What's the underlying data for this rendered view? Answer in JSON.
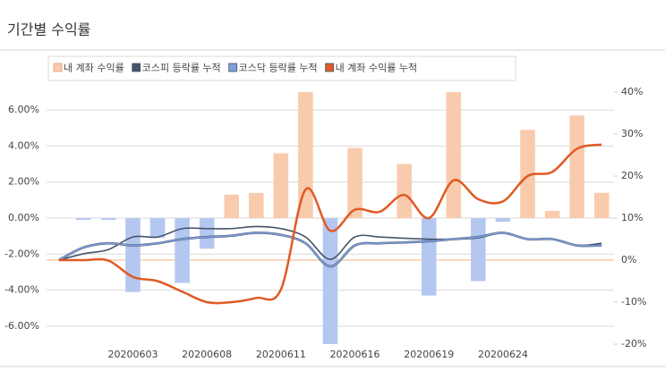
{
  "chart_data": {
    "type": "combo",
    "title": "기간별 수익률",
    "categories": [
      null,
      null,
      null,
      "20200603",
      null,
      null,
      "20200608",
      null,
      null,
      "20200611",
      null,
      null,
      "20200616",
      null,
      null,
      "20200619",
      null,
      null,
      "20200624",
      null,
      null,
      null,
      null
    ],
    "series": [
      {
        "name": "내 계좌 수익률",
        "type": "bar",
        "axis": "y",
        "color": "#f8cbad",
        "negative_color": "#b4c7f0",
        "values": [
          0,
          -0.1,
          -0.1,
          -4.1,
          -1.1,
          -3.6,
          -1.7,
          1.3,
          1.4,
          3.6,
          7,
          -7,
          3.9,
          0,
          3,
          -4.3,
          7,
          -3.5,
          -0.2,
          4.9,
          0.4,
          5.7,
          1.4
        ]
      },
      {
        "name": "코스피 등락률 누적",
        "type": "line",
        "axis": "y2",
        "color": "#44546a",
        "values": [
          0,
          1.5,
          2.5,
          5.5,
          5.5,
          7.5,
          7.5,
          7.5,
          8,
          7.5,
          5.5,
          0.2,
          5.5,
          5.5,
          5.2,
          5,
          5,
          5.3,
          6.5,
          5,
          5,
          3.5,
          4
        ]
      },
      {
        "name": "코스닥 등락률 누적",
        "type": "line",
        "axis": "y2",
        "color": "#7f9fdc",
        "values": [
          0,
          3,
          4,
          3.5,
          4,
          5,
          5.5,
          5.8,
          6.5,
          6,
          4,
          -1.5,
          3.5,
          4,
          4.2,
          4.5,
          5,
          5.5,
          6.5,
          5,
          5,
          3.5,
          3.5
        ]
      },
      {
        "name": "내 계좌 수익률 누적",
        "type": "line",
        "axis": "y2",
        "color": "#e05a24",
        "values": [
          0,
          0,
          -0.1,
          -4,
          -5,
          -7.5,
          -10,
          -10,
          -9,
          -7,
          16.8,
          7,
          12,
          11.5,
          15.5,
          10,
          19,
          14.5,
          14,
          20,
          21,
          26.5,
          27.5
        ]
      }
    ],
    "ylim": [
      -7,
      7
    ],
    "yticks": [
      {
        "value": -6,
        "label": "-6.00%"
      },
      {
        "value": -4,
        "label": "-4.00%"
      },
      {
        "value": -2,
        "label": "-2.00%"
      },
      {
        "value": 0,
        "label": "0.00%"
      },
      {
        "value": 2,
        "label": "2.00%"
      },
      {
        "value": 4,
        "label": "4.00%"
      },
      {
        "value": 6,
        "label": "6.00%"
      }
    ],
    "y2lim": [
      -20,
      40
    ],
    "y2ticks": [
      {
        "value": -20,
        "label": "-20%"
      },
      {
        "value": -10,
        "label": "-10%"
      },
      {
        "value": 0,
        "label": "0%"
      },
      {
        "value": 10,
        "label": "10%"
      },
      {
        "value": 20,
        "label": "20%"
      },
      {
        "value": 30,
        "label": "30%"
      },
      {
        "value": 40,
        "label": "40%"
      }
    ],
    "grid": true,
    "legend": "top-left"
  }
}
